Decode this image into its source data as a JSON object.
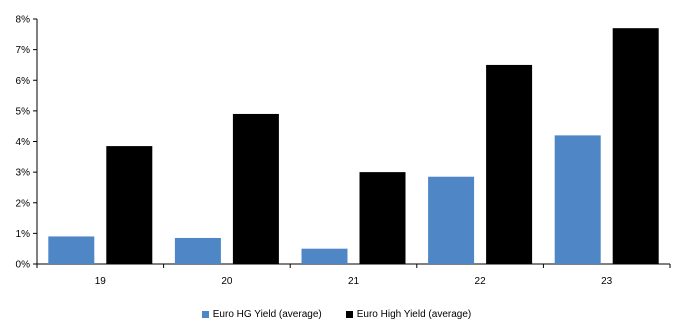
{
  "chart_data": {
    "type": "bar",
    "categories": [
      "19",
      "20",
      "21",
      "22",
      "23"
    ],
    "series": [
      {
        "name": "Euro HG Yield (average)",
        "color": "#4f86c6",
        "values": [
          0.9,
          0.85,
          0.5,
          2.85,
          4.2
        ]
      },
      {
        "name": "Euro High Yield (average)",
        "color": "#000000",
        "values": [
          3.85,
          4.9,
          3.0,
          6.5,
          7.7
        ]
      }
    ],
    "y_ticks": [
      "0%",
      "1%",
      "2%",
      "3%",
      "4%",
      "5%",
      "6%",
      "7%",
      "8%"
    ],
    "ylim": [
      0,
      8
    ],
    "title": "",
    "xlabel": "",
    "ylabel": "",
    "grid": false,
    "legend_position": "bottom"
  }
}
